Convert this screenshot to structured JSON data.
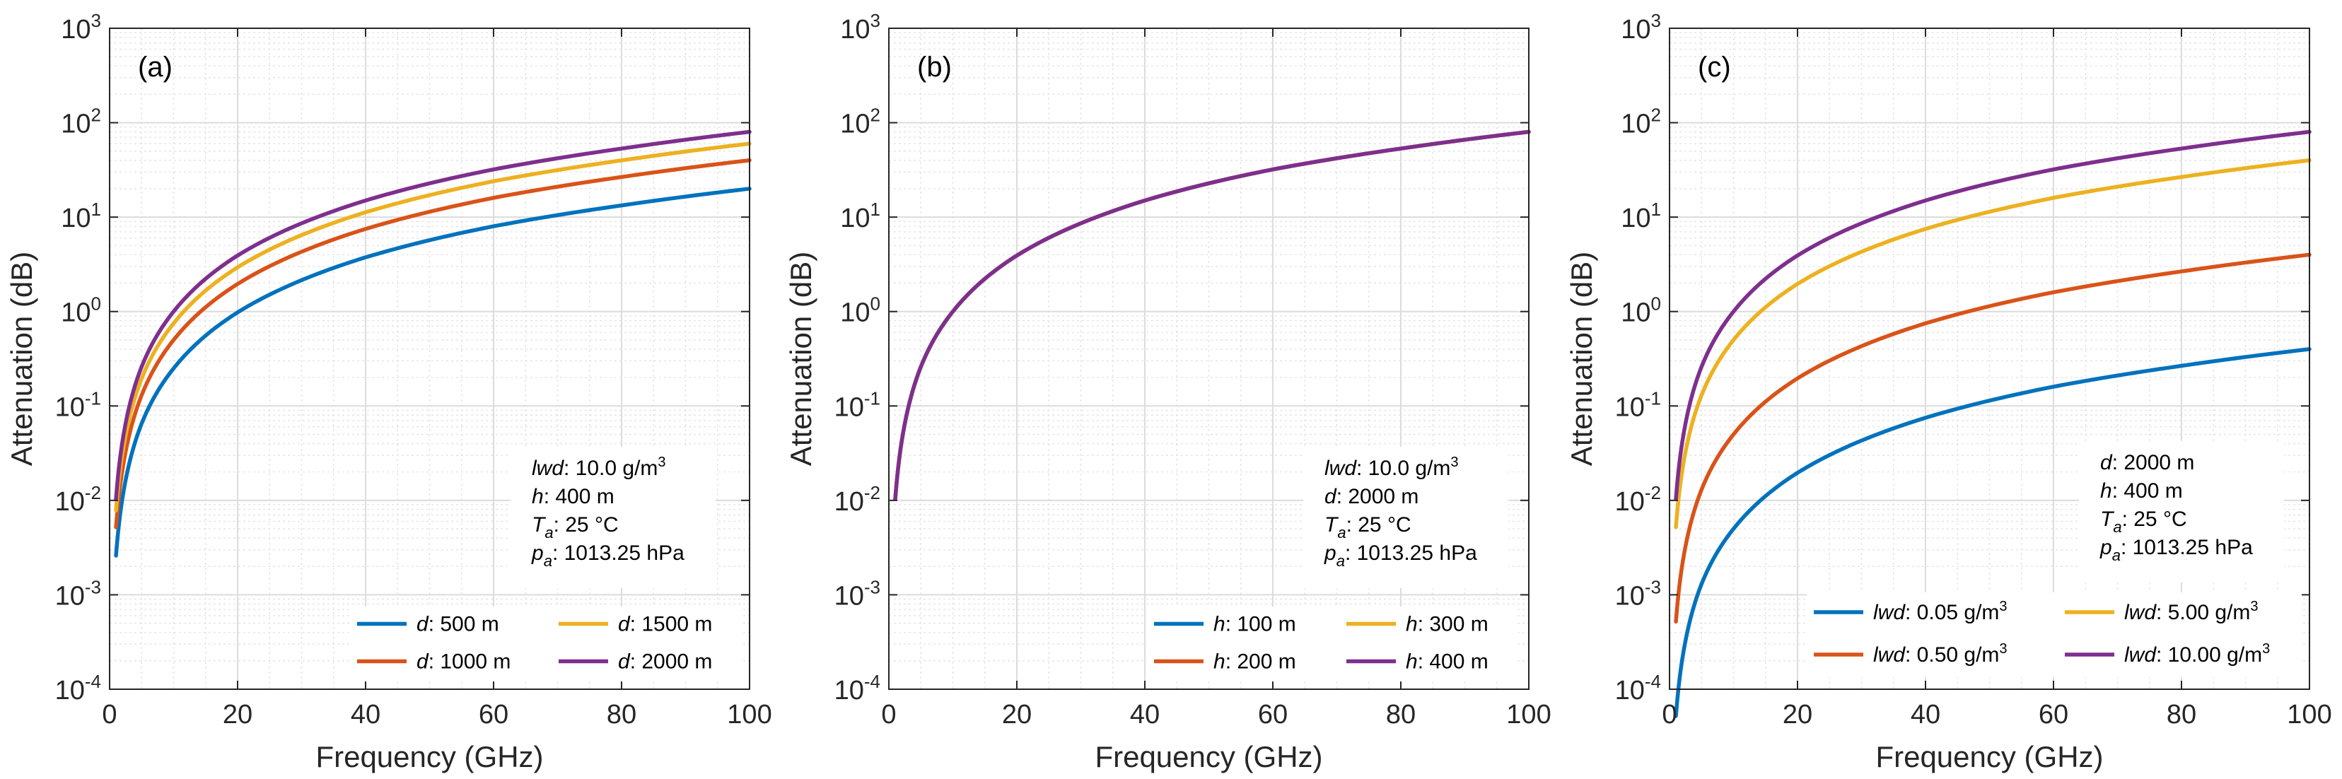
{
  "figure": {
    "background": "#ffffff"
  },
  "chart_data": [
    {
      "id": "a",
      "type": "line",
      "panel_label": "(a)",
      "xlabel": "Frequency (GHz)",
      "ylabel": "Attenuation (dB)",
      "yscale": "log",
      "xlim": [
        0,
        100
      ],
      "ylim": [
        0.0001,
        1000
      ],
      "grid": true,
      "x_ticks": [
        "0",
        "20",
        "40",
        "60",
        "80",
        "100"
      ],
      "y_tick_exponents": [
        "-4",
        "-3",
        "-2",
        "-1",
        "0",
        "1",
        "2",
        "3"
      ],
      "y_tick_base": "10",
      "annotation": [
        {
          "italic": "lwd",
          "rest": ": 10.0 g/m",
          "sup": "3"
        },
        {
          "italic": "h",
          "rest": ": 400 m"
        },
        {
          "italic": "T",
          "sub": "a",
          "rest": ": 25 °C"
        },
        {
          "italic": "p",
          "sub": "a",
          "rest": ": 1013.25 hPa"
        }
      ],
      "legend_position": "bottom-right",
      "series": [
        {
          "italic": "d",
          "label": ": 500 m",
          "color": "#0072BD",
          "x": [
            1,
            2,
            5,
            10,
            20,
            30,
            40,
            50,
            60,
            70,
            80,
            90,
            100
          ],
          "y": [
            0.0026,
            0.0105,
            0.065,
            0.25,
            0.98,
            2.15,
            3.75,
            5.7,
            8.0,
            10.5,
            13.3,
            16.5,
            20
          ]
        },
        {
          "italic": "d",
          "label": ": 1000 m",
          "color": "#D95319",
          "x": [
            1,
            2,
            5,
            10,
            20,
            30,
            40,
            50,
            60,
            70,
            80,
            90,
            100
          ],
          "y": [
            0.0052,
            0.021,
            0.13,
            0.5,
            1.96,
            4.3,
            7.5,
            11.4,
            16,
            21,
            26.6,
            33,
            40
          ]
        },
        {
          "italic": "d",
          "label": ": 1500 m",
          "color": "#EDB120",
          "x": [
            1,
            2,
            5,
            10,
            20,
            30,
            40,
            50,
            60,
            70,
            80,
            90,
            100
          ],
          "y": [
            0.0078,
            0.031,
            0.195,
            0.75,
            2.94,
            6.45,
            11.25,
            17.1,
            24,
            31.5,
            39.9,
            49.5,
            60
          ]
        },
        {
          "italic": "d",
          "label": ": 2000 m",
          "color": "#7E2F8E",
          "x": [
            1,
            2,
            5,
            10,
            20,
            30,
            40,
            50,
            60,
            70,
            80,
            90,
            100
          ],
          "y": [
            0.0104,
            0.042,
            0.26,
            1.0,
            3.92,
            8.6,
            15,
            22.8,
            32,
            42,
            53.2,
            66,
            80
          ]
        }
      ]
    },
    {
      "id": "b",
      "type": "line",
      "panel_label": "(b)",
      "xlabel": "Frequency (GHz)",
      "ylabel": "Attenuation (dB)",
      "yscale": "log",
      "xlim": [
        0,
        100
      ],
      "ylim": [
        0.0001,
        1000
      ],
      "grid": true,
      "x_ticks": [
        "0",
        "20",
        "40",
        "60",
        "80",
        "100"
      ],
      "y_tick_exponents": [
        "-4",
        "-3",
        "-2",
        "-1",
        "0",
        "1",
        "2",
        "3"
      ],
      "y_tick_base": "10",
      "annotation": [
        {
          "italic": "lwd",
          "rest": ": 10.0 g/m",
          "sup": "3"
        },
        {
          "italic": "d",
          "rest": ": 2000 m"
        },
        {
          "italic": "T",
          "sub": "a",
          "rest": ": 25 °C"
        },
        {
          "italic": "p",
          "sub": "a",
          "rest": ": 1013.25 hPa"
        }
      ],
      "legend_position": "bottom-right",
      "series": [
        {
          "italic": "h",
          "label": ": 100 m",
          "color": "#0072BD",
          "x": [
            1,
            2,
            5,
            10,
            20,
            30,
            40,
            50,
            60,
            70,
            80,
            90,
            100
          ],
          "y": [
            0.0104,
            0.042,
            0.26,
            1.0,
            3.92,
            8.6,
            15,
            22.8,
            32,
            42,
            53.2,
            66,
            80
          ]
        },
        {
          "italic": "h",
          "label": ": 200 m",
          "color": "#D95319",
          "x": [
            1,
            2,
            5,
            10,
            20,
            30,
            40,
            50,
            60,
            70,
            80,
            90,
            100
          ],
          "y": [
            0.0104,
            0.042,
            0.26,
            1.0,
            3.92,
            8.6,
            15,
            22.8,
            32,
            42,
            53.2,
            66,
            80
          ]
        },
        {
          "italic": "h",
          "label": ": 300 m",
          "color": "#EDB120",
          "x": [
            1,
            2,
            5,
            10,
            20,
            30,
            40,
            50,
            60,
            70,
            80,
            90,
            100
          ],
          "y": [
            0.0104,
            0.042,
            0.26,
            1.0,
            3.92,
            8.6,
            15,
            22.8,
            32,
            42,
            53.2,
            66,
            80
          ]
        },
        {
          "italic": "h",
          "label": ": 400 m",
          "color": "#7E2F8E",
          "x": [
            1,
            2,
            5,
            10,
            20,
            30,
            40,
            50,
            60,
            70,
            80,
            90,
            100
          ],
          "y": [
            0.0104,
            0.042,
            0.26,
            1.0,
            3.92,
            8.6,
            15,
            22.8,
            32,
            42,
            53.2,
            66,
            80
          ]
        }
      ]
    },
    {
      "id": "c",
      "type": "line",
      "panel_label": "(c)",
      "xlabel": "Frequency (GHz)",
      "ylabel": "Attenuation (dB)",
      "yscale": "log",
      "xlim": [
        0,
        100
      ],
      "ylim": [
        0.0001,
        1000
      ],
      "grid": true,
      "x_ticks": [
        "0",
        "20",
        "40",
        "60",
        "80",
        "100"
      ],
      "y_tick_exponents": [
        "-4",
        "-3",
        "-2",
        "-1",
        "0",
        "1",
        "2",
        "3"
      ],
      "y_tick_base": "10",
      "annotation": [
        {
          "italic": "d",
          "rest": ": 2000 m"
        },
        {
          "italic": "h",
          "rest": ": 400 m"
        },
        {
          "italic": "T",
          "sub": "a",
          "rest": ": 25 °C"
        },
        {
          "italic": "p",
          "sub": "a",
          "rest": ": 1013.25 hPa"
        }
      ],
      "legend_position": "bottom-right",
      "series": [
        {
          "italic": "lwd",
          "label": ": 0.05 g/m",
          "sup": "3",
          "color": "#0072BD",
          "x": [
            1,
            2,
            5,
            10,
            20,
            30,
            40,
            50,
            60,
            70,
            80,
            90,
            100
          ],
          "y": [
            5.2e-05,
            0.00021,
            0.0013,
            0.005,
            0.0196,
            0.043,
            0.075,
            0.114,
            0.16,
            0.21,
            0.266,
            0.33,
            0.4
          ]
        },
        {
          "italic": "lwd",
          "label": ": 0.50 g/m",
          "sup": "3",
          "color": "#D95319",
          "x": [
            1,
            2,
            5,
            10,
            20,
            30,
            40,
            50,
            60,
            70,
            80,
            90,
            100
          ],
          "y": [
            0.00052,
            0.0021,
            0.013,
            0.05,
            0.196,
            0.43,
            0.75,
            1.14,
            1.6,
            2.1,
            2.66,
            3.3,
            4.0
          ]
        },
        {
          "italic": "lwd",
          "label": ": 5.00 g/m",
          "sup": "3",
          "color": "#EDB120",
          "x": [
            1,
            2,
            5,
            10,
            20,
            30,
            40,
            50,
            60,
            70,
            80,
            90,
            100
          ],
          "y": [
            0.0052,
            0.021,
            0.13,
            0.5,
            1.96,
            4.3,
            7.5,
            11.4,
            16,
            21,
            26.6,
            33,
            40
          ]
        },
        {
          "italic": "lwd",
          "label": ": 10.00 g/m",
          "sup": "3",
          "color": "#7E2F8E",
          "x": [
            1,
            2,
            5,
            10,
            20,
            30,
            40,
            50,
            60,
            70,
            80,
            90,
            100
          ],
          "y": [
            0.0104,
            0.042,
            0.26,
            1.0,
            3.92,
            8.6,
            15,
            22.8,
            32,
            42,
            53.2,
            66,
            80
          ]
        }
      ]
    }
  ]
}
